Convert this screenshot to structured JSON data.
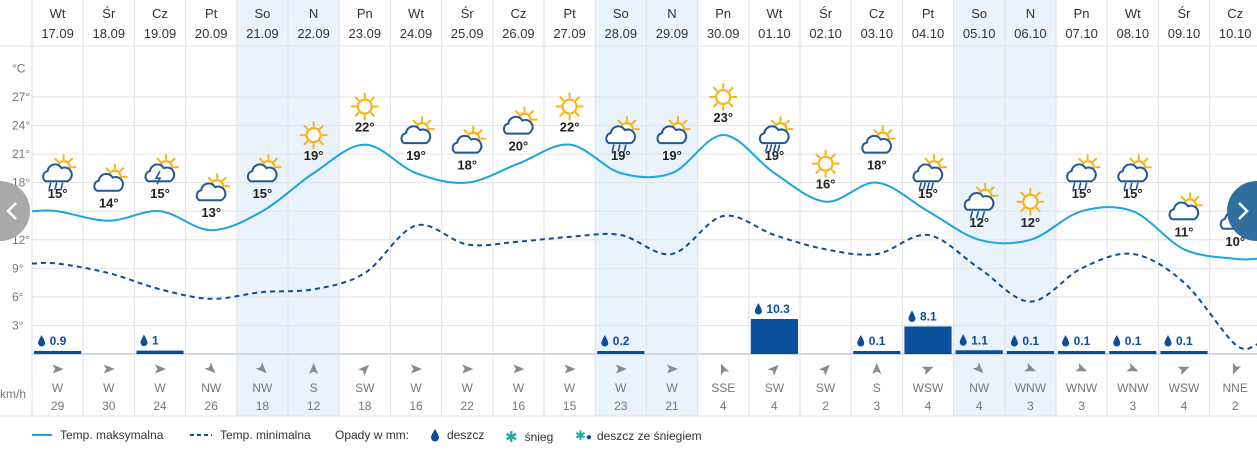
{
  "chart_data": {
    "type": "line",
    "days": [
      {
        "name": "Wt",
        "date": "17.09",
        "tmax": 15,
        "tmin": 9.5,
        "icon": "sun-cloud-rain",
        "rain": 0.9,
        "wind_dir": "W",
        "wind_speed": 29,
        "weekend": false
      },
      {
        "name": "Śr",
        "date": "18.09",
        "tmax": 14,
        "tmin": 8.5,
        "icon": "sun-cloud",
        "rain": null,
        "wind_dir": "W",
        "wind_speed": 30,
        "weekend": false
      },
      {
        "name": "Cz",
        "date": "19.09",
        "tmax": 15,
        "tmin": 6.8,
        "icon": "sun-cloud-storm",
        "rain": 1.0,
        "wind_dir": "W",
        "wind_speed": 24,
        "weekend": false
      },
      {
        "name": "Pt",
        "date": "20.09",
        "tmax": 13,
        "tmin": 5.8,
        "icon": "sun-cloud",
        "rain": null,
        "wind_dir": "NW",
        "wind_speed": 26,
        "weekend": false
      },
      {
        "name": "So",
        "date": "21.09",
        "tmax": 15,
        "tmin": 6.5,
        "icon": "sun-cloud",
        "rain": null,
        "wind_dir": "NW",
        "wind_speed": 18,
        "weekend": true
      },
      {
        "name": "N",
        "date": "22.09",
        "tmax": 19,
        "tmin": 6.8,
        "icon": "sun",
        "rain": null,
        "wind_dir": "S",
        "wind_speed": 12,
        "weekend": true
      },
      {
        "name": "Pn",
        "date": "23.09",
        "tmax": 22,
        "tmin": 8.5,
        "icon": "sun",
        "rain": null,
        "wind_dir": "SW",
        "wind_speed": 18,
        "weekend": false
      },
      {
        "name": "Wt",
        "date": "24.09",
        "tmax": 19,
        "tmin": 13.5,
        "icon": "sun-cloud",
        "rain": null,
        "wind_dir": "W",
        "wind_speed": 16,
        "weekend": false
      },
      {
        "name": "Śr",
        "date": "25.09",
        "tmax": 18,
        "tmin": 11.5,
        "icon": "sun-cloud",
        "rain": null,
        "wind_dir": "W",
        "wind_speed": 22,
        "weekend": false
      },
      {
        "name": "Cz",
        "date": "26.09",
        "tmax": 20,
        "tmin": 11.8,
        "icon": "sun-cloud",
        "rain": null,
        "wind_dir": "W",
        "wind_speed": 16,
        "weekend": false
      },
      {
        "name": "Pt",
        "date": "27.09",
        "tmax": 22,
        "tmin": 12.3,
        "icon": "sun",
        "rain": null,
        "wind_dir": "W",
        "wind_speed": 15,
        "weekend": false
      },
      {
        "name": "So",
        "date": "28.09",
        "tmax": 19,
        "tmin": 12.5,
        "icon": "sun-cloud-rain",
        "rain": 0.2,
        "wind_dir": "W",
        "wind_speed": 23,
        "weekend": true
      },
      {
        "name": "N",
        "date": "29.09",
        "tmax": 19,
        "tmin": 10.5,
        "icon": "sun-cloud",
        "rain": null,
        "wind_dir": "W",
        "wind_speed": 21,
        "weekend": true
      },
      {
        "name": "Pn",
        "date": "30.09",
        "tmax": 23,
        "tmin": 14.5,
        "icon": "sun",
        "rain": null,
        "wind_dir": "SSE",
        "wind_speed": 4,
        "weekend": false
      },
      {
        "name": "Wt",
        "date": "01.10",
        "tmax": 19,
        "tmin": 12.5,
        "icon": "sun-cloud-heavyrain",
        "rain": 10.3,
        "wind_dir": "SW",
        "wind_speed": 4,
        "weekend": false
      },
      {
        "name": "Śr",
        "date": "02.10",
        "tmax": 16,
        "tmin": 11.0,
        "icon": "sun",
        "rain": null,
        "wind_dir": "SW",
        "wind_speed": 2,
        "weekend": false
      },
      {
        "name": "Cz",
        "date": "03.10",
        "tmax": 18,
        "tmin": 10.5,
        "icon": "sun-cloud",
        "rain": 0.1,
        "wind_dir": "S",
        "wind_speed": 3,
        "weekend": false
      },
      {
        "name": "Pt",
        "date": "04.10",
        "tmax": 15,
        "tmin": 12.5,
        "icon": "sun-cloud-heavyrain",
        "rain": 8.1,
        "wind_dir": "WSW",
        "wind_speed": 4,
        "weekend": false
      },
      {
        "name": "So",
        "date": "05.10",
        "tmax": 12,
        "tmin": 9.0,
        "icon": "sun-cloud-rain",
        "rain": 1.1,
        "wind_dir": "NW",
        "wind_speed": 4,
        "weekend": true
      },
      {
        "name": "N",
        "date": "06.10",
        "tmax": 12,
        "tmin": 5.5,
        "icon": "sun",
        "rain": 0.1,
        "wind_dir": "WNW",
        "wind_speed": 3,
        "weekend": true
      },
      {
        "name": "Pn",
        "date": "07.10",
        "tmax": 15,
        "tmin": 9.0,
        "icon": "sun-cloud-rain",
        "rain": 0.1,
        "wind_dir": "WNW",
        "wind_speed": 3,
        "weekend": false
      },
      {
        "name": "Wt",
        "date": "08.10",
        "tmax": 15,
        "tmin": 10.5,
        "icon": "sun-cloud-rain",
        "rain": 0.1,
        "wind_dir": "WNW",
        "wind_speed": 3,
        "weekend": false
      },
      {
        "name": "Śr",
        "date": "09.10",
        "tmax": 11,
        "tmin": 7.5,
        "icon": "sun-cloud",
        "rain": 0.1,
        "wind_dir": "WSW",
        "wind_speed": 4,
        "weekend": false
      },
      {
        "name": "Cz",
        "date": "10.10",
        "tmax": 10,
        "tmin": 1.0,
        "icon": "sun-cloud",
        "rain": null,
        "wind_dir": "NNE",
        "wind_speed": 2,
        "weekend": false
      }
    ],
    "y_axis": {
      "unit": "°C",
      "ticks": [
        3,
        6,
        9,
        12,
        15,
        18,
        21,
        24,
        27
      ],
      "range": [
        0,
        30
      ]
    },
    "rain_axis": {
      "unit": "mm",
      "max_bar": 10.3
    },
    "wind_unit": "km/h",
    "grid": true
  },
  "colors": {
    "tmax": "#1aa6dc",
    "tmin": "#0b4f9c",
    "rain_bar": "#0b4f9c",
    "weekend_bg": "#eaf2fb",
    "grid": "#e3e3e3",
    "sun": "#f5b41a",
    "cloud_stroke": "#1f5a96",
    "snow": "#1ab0a0",
    "nav_left": "#a9a9a9",
    "nav_right": "#2f6f9f"
  },
  "legend": {
    "tmax_label": "Temp. maksymalna",
    "tmin_label": "Temp. minimalna",
    "precip_title": "Opady w mm:",
    "rain_label": "deszcz",
    "snow_label": "śnieg",
    "mixed_label": "deszcz ze śniegiem"
  },
  "nav": {
    "prev_icon": "chevron-left-icon",
    "next_icon": "chevron-right-icon"
  }
}
